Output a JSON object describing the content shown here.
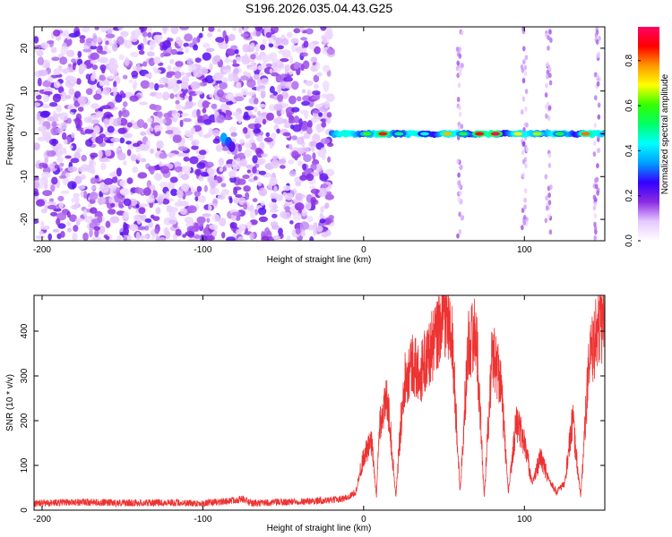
{
  "chart_data": [
    {
      "type": "heatmap",
      "title": "S196.2026.035.04.43.G25",
      "xlabel": "Height of straight line (km)",
      "ylabel": "Frequency (Hz)",
      "xlim": [
        -205,
        150
      ],
      "ylim": [
        -25,
        25
      ],
      "xticks": [
        -200,
        -100,
        0,
        100
      ],
      "yticks": [
        -20,
        -10,
        0,
        10,
        20
      ],
      "colorbar": {
        "label": "Normalized spectral amplitude",
        "range": [
          0.0,
          0.95
        ],
        "ticks": [
          0.0,
          0.2,
          0.4,
          0.6,
          0.8
        ],
        "colormap": [
          "#ffffff",
          "#e6c8ff",
          "#8a2be2",
          "#3300ff",
          "#00a0ff",
          "#00ffff",
          "#00ff66",
          "#33ff00",
          "#ffff00",
          "#ff9900",
          "#ff0000",
          "#ff0066"
        ]
      },
      "features": {
        "noise_band_x": [
          -205,
          -20
        ],
        "tonal_line_x": [
          -20,
          150
        ],
        "tonal_line_frequency": 0,
        "vertical_streaks_x": [
          60,
          100,
          115,
          145
        ]
      }
    },
    {
      "type": "line",
      "xlabel": "Height of straight line (km)",
      "ylabel": "SNR (10 * v/v)",
      "xlim": [
        -205,
        150
      ],
      "ylim": [
        0,
        480
      ],
      "xticks": [
        -200,
        -100,
        0,
        100
      ],
      "yticks": [
        0,
        100,
        200,
        300,
        400
      ],
      "series": [
        {
          "name": "SNR",
          "color": "#ee3333",
          "x": [
            -205,
            -180,
            -150,
            -120,
            -100,
            -85,
            -75,
            -70,
            -50,
            -20,
            -10,
            -5,
            0,
            5,
            8,
            10,
            15,
            20,
            25,
            30,
            35,
            40,
            45,
            48,
            50,
            55,
            60,
            65,
            70,
            75,
            80,
            85,
            90,
            95,
            100,
            105,
            110,
            115,
            120,
            125,
            130,
            135,
            140,
            145,
            150
          ],
          "y": [
            15,
            18,
            16,
            17,
            15,
            20,
            25,
            15,
            18,
            22,
            28,
            40,
            120,
            150,
            30,
            200,
            250,
            30,
            290,
            330,
            300,
            350,
            380,
            420,
            450,
            380,
            40,
            370,
            400,
            30,
            350,
            300,
            40,
            200,
            150,
            60,
            120,
            70,
            40,
            60,
            200,
            30,
            320,
            400,
            430
          ]
        }
      ]
    }
  ]
}
